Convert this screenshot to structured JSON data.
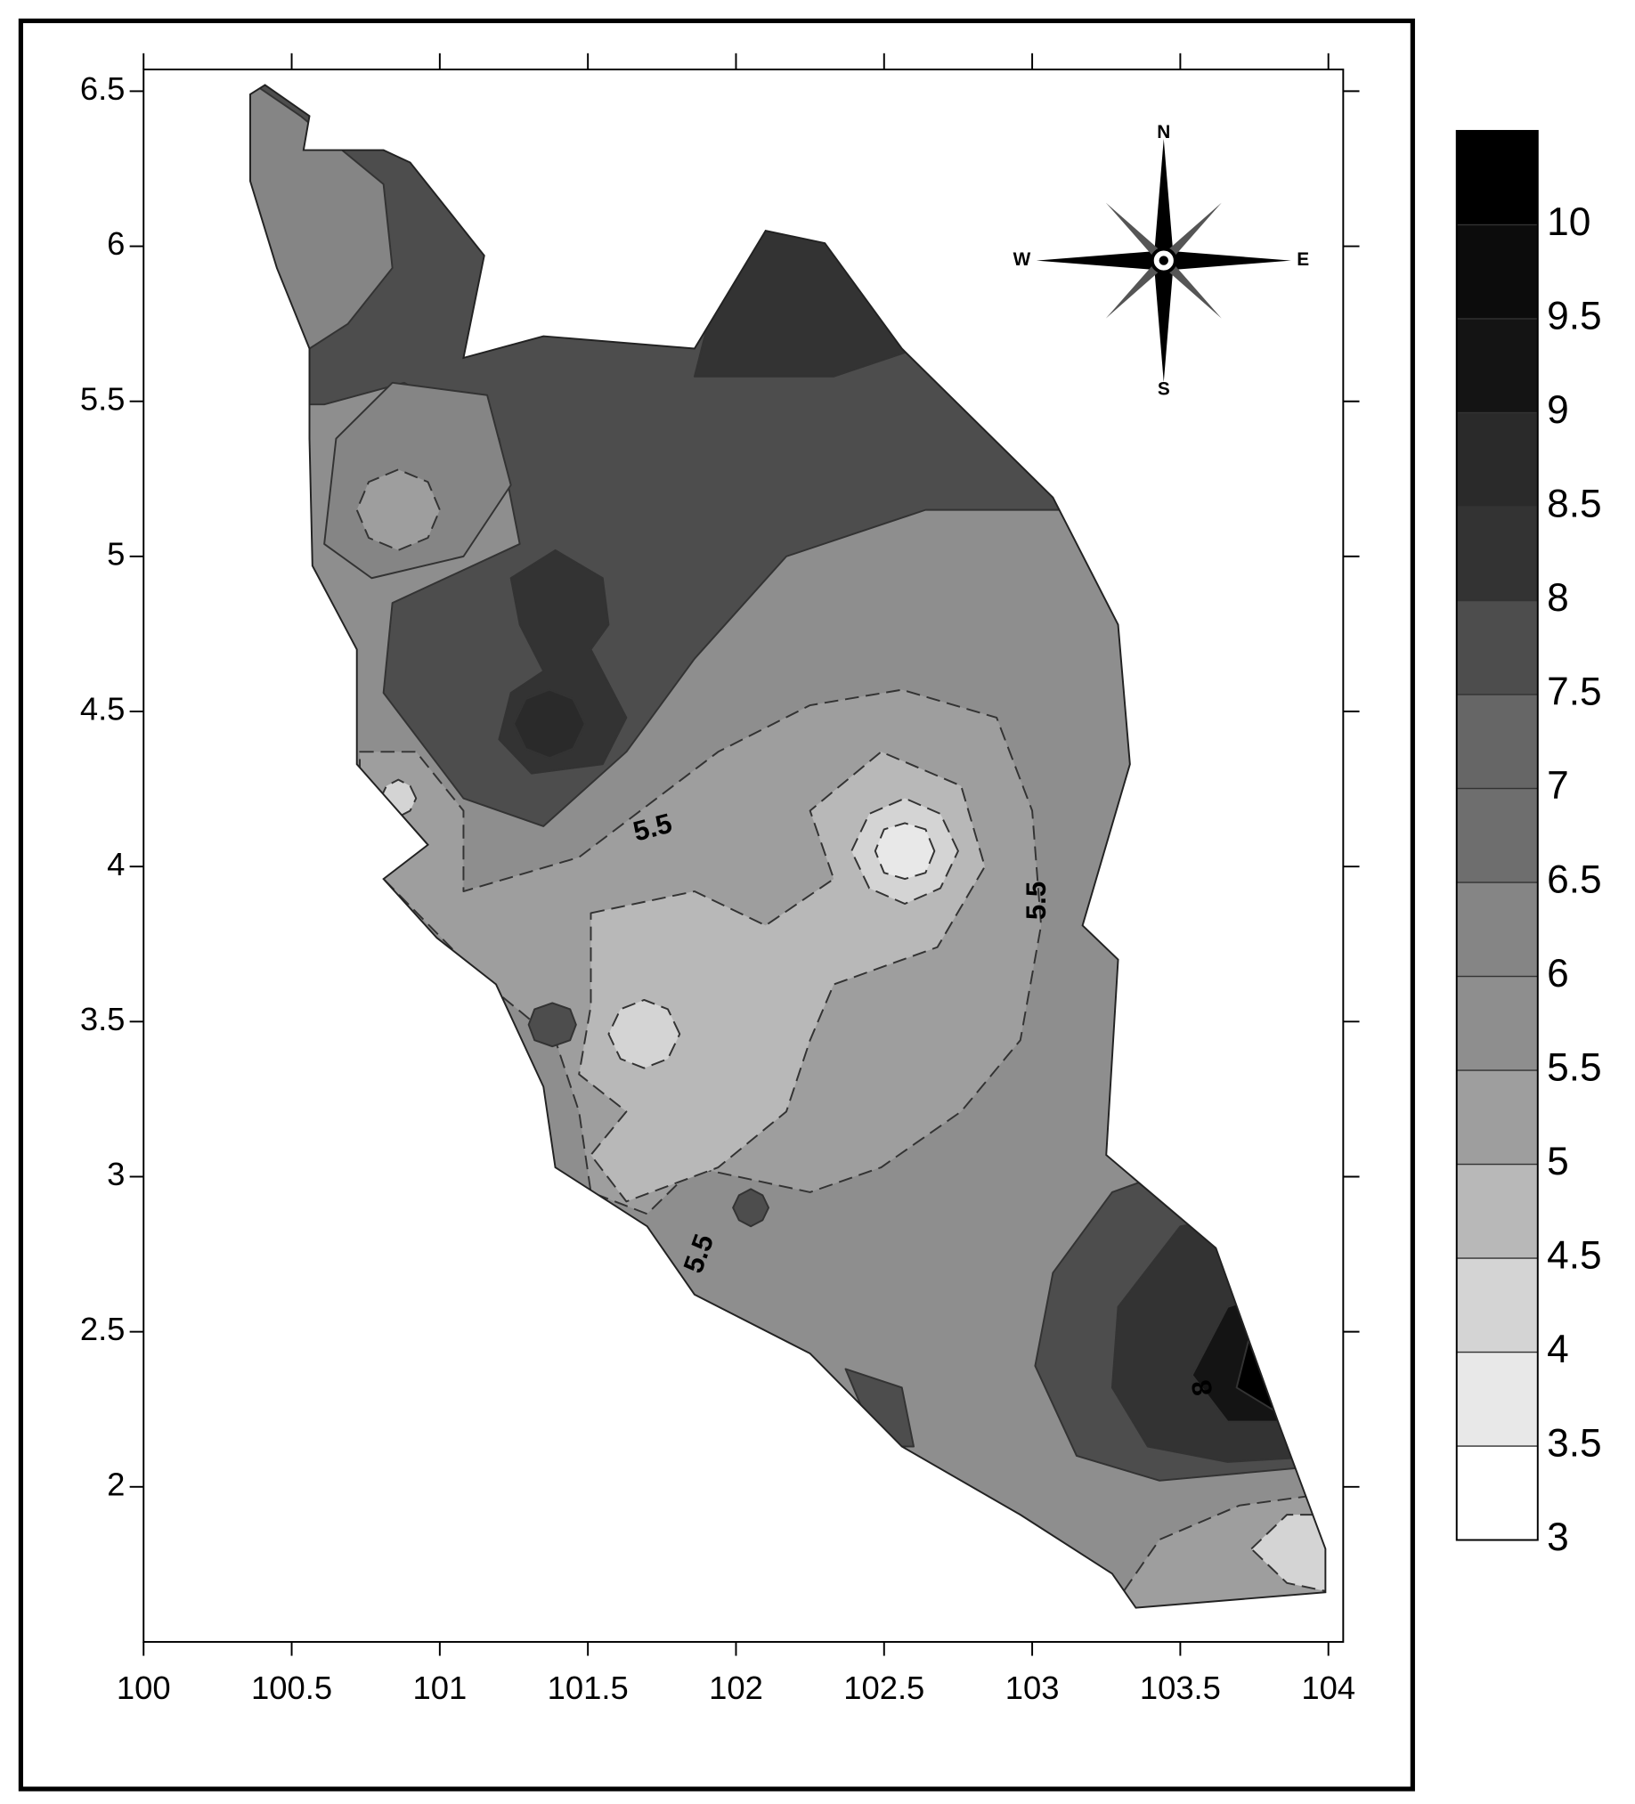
{
  "chart_data": {
    "type": "contour",
    "xlim": [
      100,
      104.05
    ],
    "ylim": [
      1.5,
      6.57
    ],
    "xticks": [
      100,
      100.5,
      101,
      101.5,
      102,
      102.5,
      103,
      103.5,
      104
    ],
    "yticks": [
      2,
      2.5,
      3,
      3.5,
      4,
      4.5,
      5,
      5.5,
      6,
      6.5
    ],
    "colorbar": {
      "ticks": [
        3,
        3.5,
        4,
        4.5,
        5,
        5.5,
        6,
        6.5,
        7,
        7.5,
        8,
        8.5,
        9,
        9.5,
        10
      ],
      "lim": [
        3,
        10.5
      ],
      "colors": [
        "#ffffff",
        "#e8e8e8",
        "#d4d4d4",
        "#b8b8b8",
        "#9e9e9e",
        "#8e8e8e",
        "#858585",
        "#6e6e6e",
        "#666666",
        "#4d4d4d",
        "#333333",
        "#2a2a2a",
        "#141414",
        "#0c0c0c",
        "#000000"
      ]
    },
    "outline": {
      "level": 5.5,
      "points": [
        [
          100.41,
          6.52
        ],
        [
          100.56,
          6.42
        ],
        [
          100.54,
          6.31
        ],
        [
          100.81,
          6.31
        ],
        [
          100.9,
          6.27
        ],
        [
          101.15,
          5.97
        ],
        [
          101.08,
          5.64
        ],
        [
          101.35,
          5.71
        ],
        [
          101.86,
          5.67
        ],
        [
          102.1,
          6.05
        ],
        [
          102.3,
          6.01
        ],
        [
          102.56,
          5.67
        ],
        [
          103.07,
          5.19
        ],
        [
          103.29,
          4.78
        ],
        [
          103.33,
          4.33
        ],
        [
          103.17,
          3.81
        ],
        [
          103.29,
          3.7
        ],
        [
          103.25,
          3.07
        ],
        [
          103.62,
          2.77
        ],
        [
          103.83,
          2.21
        ],
        [
          103.99,
          1.8
        ],
        [
          103.99,
          1.66
        ],
        [
          103.35,
          1.61
        ],
        [
          103.27,
          1.72
        ],
        [
          102.96,
          1.91
        ],
        [
          102.56,
          2.13
        ],
        [
          102.25,
          2.43
        ],
        [
          101.86,
          2.62
        ],
        [
          101.7,
          2.84
        ],
        [
          101.39,
          3.03
        ],
        [
          101.35,
          3.29
        ],
        [
          101.19,
          3.62
        ],
        [
          100.99,
          3.77
        ],
        [
          100.81,
          3.96
        ],
        [
          100.96,
          4.07
        ],
        [
          100.72,
          4.33
        ],
        [
          100.72,
          4.7
        ],
        [
          100.57,
          4.97
        ],
        [
          100.56,
          5.38
        ],
        [
          100.56,
          5.67
        ],
        [
          100.45,
          5.93
        ],
        [
          100.36,
          6.21
        ],
        [
          100.36,
          6.49
        ]
      ]
    },
    "regions": [
      {
        "level": 7.5,
        "points": [
          [
            100.3,
            6.57
          ],
          [
            103.43,
            6.57
          ],
          [
            103.43,
            5.15
          ],
          [
            102.64,
            5.15
          ],
          [
            102.17,
            5.0
          ],
          [
            101.86,
            4.67
          ],
          [
            101.63,
            4.37
          ],
          [
            101.35,
            4.13
          ],
          [
            101.08,
            4.22
          ],
          [
            100.81,
            4.56
          ],
          [
            100.84,
            4.85
          ],
          [
            101.27,
            5.04
          ],
          [
            101.2,
            5.38
          ],
          [
            100.88,
            5.56
          ],
          [
            100.61,
            5.49
          ],
          [
            100.3,
            5.49
          ]
        ]
      },
      {
        "level": 6,
        "points": [
          [
            100.3,
            6.57
          ],
          [
            100.53,
            6.42
          ],
          [
            100.81,
            6.2
          ],
          [
            100.84,
            5.93
          ],
          [
            100.69,
            5.75
          ],
          [
            100.56,
            5.67
          ],
          [
            100.3,
            5.67
          ]
        ]
      },
      {
        "level": 6,
        "points": [
          [
            100.65,
            5.38
          ],
          [
            100.84,
            5.56
          ],
          [
            101.16,
            5.52
          ],
          [
            101.24,
            5.23
          ],
          [
            101.08,
            5.0
          ],
          [
            100.77,
            4.93
          ],
          [
            100.61,
            5.04
          ]
        ]
      },
      {
        "level": 5,
        "points": [
          [
            101.0,
            5.15
          ],
          [
            100.96,
            5.24
          ],
          [
            100.86,
            5.28
          ],
          [
            100.76,
            5.24
          ],
          [
            100.72,
            5.15
          ],
          [
            100.76,
            5.06
          ],
          [
            100.86,
            5.02
          ],
          [
            100.96,
            5.06
          ]
        ]
      },
      {
        "level": 8,
        "points": [
          [
            101.24,
            4.93
          ],
          [
            101.39,
            5.02
          ],
          [
            101.55,
            4.93
          ],
          [
            101.57,
            4.78
          ],
          [
            101.51,
            4.7
          ],
          [
            101.63,
            4.48
          ],
          [
            101.55,
            4.33
          ],
          [
            101.31,
            4.3
          ],
          [
            101.2,
            4.41
          ],
          [
            101.24,
            4.56
          ],
          [
            101.35,
            4.63
          ],
          [
            101.27,
            4.78
          ]
        ]
      },
      {
        "level": 8.5,
        "points": [
          [
            101.49,
            4.46
          ],
          [
            101.45,
            4.54
          ],
          [
            101.37,
            4.57
          ],
          [
            101.29,
            4.54
          ],
          [
            101.25,
            4.46
          ],
          [
            101.29,
            4.38
          ],
          [
            101.37,
            4.35
          ],
          [
            101.45,
            4.38
          ]
        ]
      },
      {
        "level": 8,
        "points": [
          [
            101.86,
            5.58
          ],
          [
            101.94,
            5.88
          ],
          [
            102.1,
            6.07
          ],
          [
            102.33,
            6.07
          ],
          [
            102.61,
            5.67
          ],
          [
            102.33,
            5.58
          ],
          [
            102.02,
            5.58
          ]
        ]
      },
      {
        "level": 5,
        "points": [
          [
            100.73,
            4.37
          ],
          [
            100.92,
            4.37
          ],
          [
            101.08,
            4.18
          ],
          [
            101.08,
            3.92
          ],
          [
            101.47,
            4.03
          ],
          [
            101.94,
            4.37
          ],
          [
            102.25,
            4.52
          ],
          [
            102.56,
            4.57
          ],
          [
            102.88,
            4.48
          ],
          [
            103.0,
            4.18
          ],
          [
            103.03,
            3.81
          ],
          [
            102.96,
            3.44
          ],
          [
            102.76,
            3.21
          ],
          [
            102.49,
            3.03
          ],
          [
            102.25,
            2.95
          ],
          [
            101.86,
            3.03
          ],
          [
            101.7,
            2.88
          ],
          [
            101.51,
            2.95
          ],
          [
            101.47,
            3.21
          ],
          [
            101.39,
            3.44
          ],
          [
            101.16,
            3.62
          ],
          [
            100.81,
            3.96
          ],
          [
            100.73,
            4.18
          ]
        ]
      },
      {
        "level": 4.5,
        "points": [
          [
            101.51,
            3.85
          ],
          [
            101.86,
            3.92
          ],
          [
            102.1,
            3.81
          ],
          [
            102.33,
            3.96
          ],
          [
            102.25,
            4.18
          ],
          [
            102.49,
            4.37
          ],
          [
            102.76,
            4.26
          ],
          [
            102.84,
            4.0
          ],
          [
            102.68,
            3.74
          ],
          [
            102.33,
            3.62
          ],
          [
            102.25,
            3.44
          ],
          [
            102.17,
            3.21
          ],
          [
            101.94,
            3.03
          ],
          [
            101.63,
            2.92
          ],
          [
            101.51,
            3.07
          ],
          [
            101.63,
            3.21
          ],
          [
            101.47,
            3.33
          ],
          [
            101.51,
            3.55
          ]
        ]
      },
      {
        "level": 4,
        "points": [
          [
            102.75,
            4.05
          ],
          [
            102.69,
            4.17
          ],
          [
            102.57,
            4.22
          ],
          [
            102.45,
            4.17
          ],
          [
            102.39,
            4.05
          ],
          [
            102.45,
            3.93
          ],
          [
            102.57,
            3.88
          ],
          [
            102.69,
            3.93
          ]
        ]
      },
      {
        "level": 3.5,
        "points": [
          [
            102.67,
            4.05
          ],
          [
            102.64,
            4.12
          ],
          [
            102.57,
            4.14
          ],
          [
            102.5,
            4.12
          ],
          [
            102.47,
            4.05
          ],
          [
            102.5,
            3.98
          ],
          [
            102.57,
            3.96
          ],
          [
            102.64,
            3.98
          ]
        ]
      },
      {
        "level": 4,
        "points": [
          [
            101.81,
            3.46
          ],
          [
            101.77,
            3.54
          ],
          [
            101.69,
            3.57
          ],
          [
            101.61,
            3.54
          ],
          [
            101.57,
            3.46
          ],
          [
            101.61,
            3.38
          ],
          [
            101.69,
            3.35
          ],
          [
            101.77,
            3.38
          ]
        ]
      },
      {
        "level": 4,
        "points": [
          [
            100.92,
            4.22
          ],
          [
            100.9,
            4.26
          ],
          [
            100.86,
            4.28
          ],
          [
            100.82,
            4.26
          ],
          [
            100.8,
            4.22
          ],
          [
            100.82,
            4.18
          ],
          [
            100.86,
            4.16
          ],
          [
            100.9,
            4.18
          ]
        ]
      },
      {
        "level": 7.5,
        "points": [
          [
            101.46,
            3.49
          ],
          [
            101.44,
            3.54
          ],
          [
            101.38,
            3.56
          ],
          [
            101.32,
            3.54
          ],
          [
            101.3,
            3.49
          ],
          [
            101.32,
            3.44
          ],
          [
            101.38,
            3.42
          ],
          [
            101.44,
            3.44
          ]
        ]
      },
      {
        "level": 7.5,
        "points": [
          [
            102.11,
            2.9
          ],
          [
            102.09,
            2.94
          ],
          [
            102.05,
            2.96
          ],
          [
            102.01,
            2.94
          ],
          [
            101.99,
            2.9
          ],
          [
            102.01,
            2.86
          ],
          [
            102.05,
            2.84
          ],
          [
            102.09,
            2.86
          ]
        ]
      },
      {
        "level": 7.5,
        "points": [
          [
            102.37,
            2.38
          ],
          [
            102.56,
            2.32
          ],
          [
            102.6,
            2.13
          ],
          [
            102.48,
            2.13
          ]
        ]
      },
      {
        "level": 7.5,
        "points": [
          [
            104.01,
            3.07
          ],
          [
            103.62,
            3.07
          ],
          [
            103.27,
            2.95
          ],
          [
            103.07,
            2.69
          ],
          [
            103.01,
            2.39
          ],
          [
            103.15,
            2.1
          ],
          [
            103.43,
            2.02
          ],
          [
            103.89,
            2.06
          ],
          [
            104.01,
            2.06
          ]
        ]
      },
      {
        "level": 8,
        "points": [
          [
            104.01,
            2.92
          ],
          [
            103.5,
            2.84
          ],
          [
            103.29,
            2.58
          ],
          [
            103.27,
            2.32
          ],
          [
            103.39,
            2.13
          ],
          [
            103.66,
            2.08
          ],
          [
            104.01,
            2.1
          ]
        ]
      },
      {
        "level": 9,
        "points": [
          [
            104.01,
            2.69
          ],
          [
            103.66,
            2.58
          ],
          [
            103.54,
            2.36
          ],
          [
            103.66,
            2.21
          ],
          [
            104.01,
            2.21
          ]
        ]
      },
      {
        "level": 10,
        "points": [
          [
            104.01,
            2.54
          ],
          [
            103.73,
            2.47
          ],
          [
            103.69,
            2.32
          ],
          [
            103.81,
            2.25
          ],
          [
            104.01,
            2.25
          ]
        ]
      },
      {
        "level": 5,
        "points": [
          [
            103.27,
            1.61
          ],
          [
            103.43,
            1.83
          ],
          [
            103.7,
            1.94
          ],
          [
            104.01,
            1.98
          ],
          [
            104.01,
            1.58
          ]
        ]
      },
      {
        "level": 4,
        "points": [
          [
            103.74,
            1.8
          ],
          [
            103.86,
            1.91
          ],
          [
            104.01,
            1.91
          ],
          [
            104.01,
            1.66
          ],
          [
            103.86,
            1.69
          ]
        ]
      }
    ],
    "contour_labels": [
      {
        "text": "5.5",
        "x": 101.72,
        "y": 4.12
      },
      {
        "text": "5.5",
        "x": 103.02,
        "y": 3.89
      },
      {
        "text": "5.5",
        "x": 101.88,
        "y": 2.75
      },
      {
        "text": "8",
        "x": 103.58,
        "y": 2.32
      }
    ],
    "compass": {
      "labels": [
        "N",
        "E",
        "S",
        "W"
      ]
    }
  }
}
